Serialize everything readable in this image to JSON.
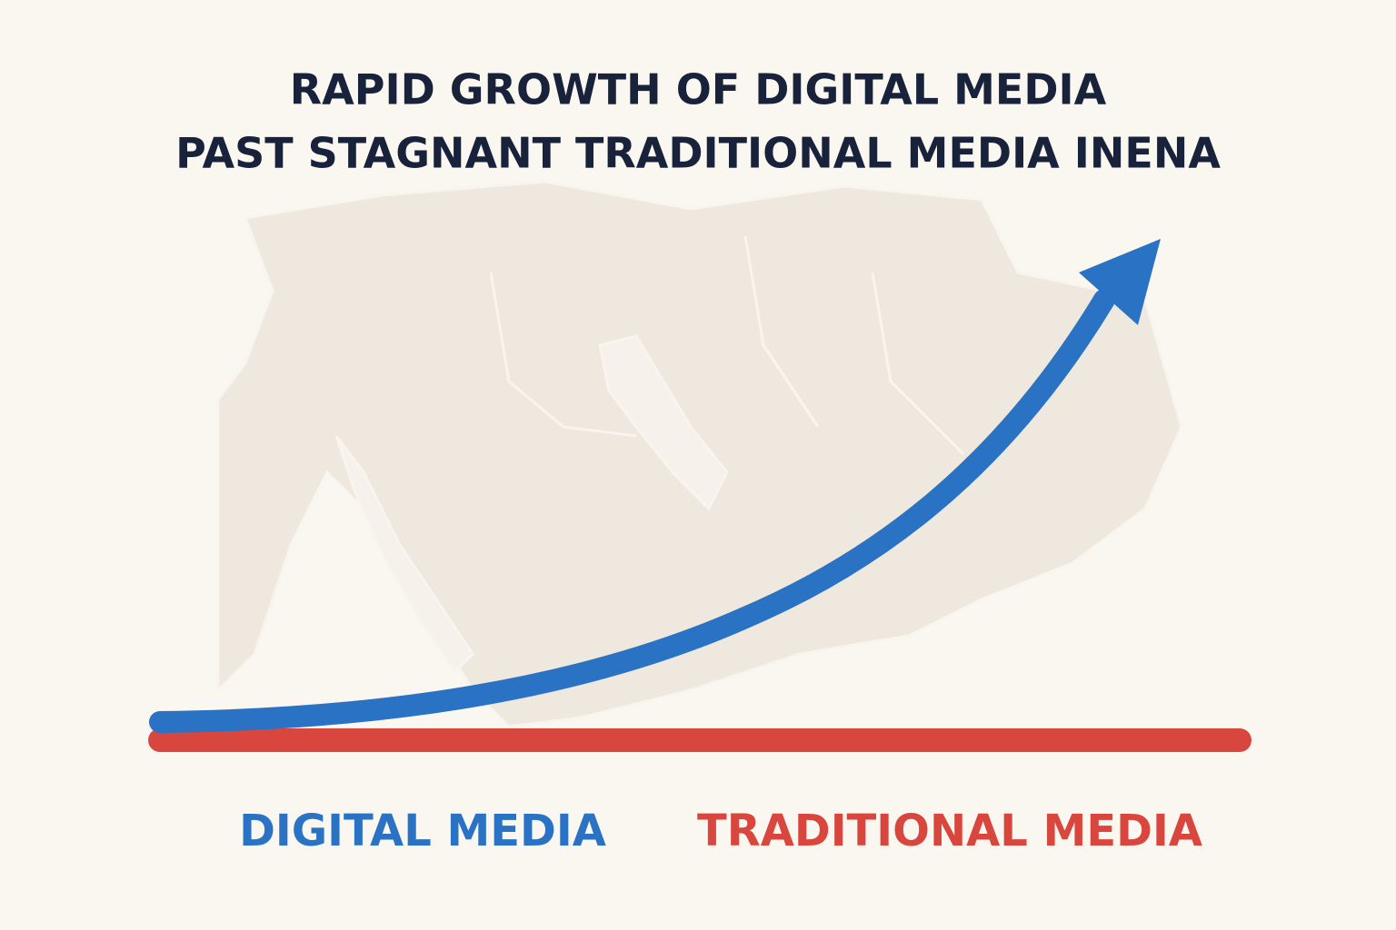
{
  "chart_data": {
    "type": "line",
    "title": [
      "RAPID GROWTH OF DIGITAL MEDIA",
      "PAST STAGNANT TRADITIONAL MEDIA INENA"
    ],
    "series": [
      {
        "name": "DIGITAL MEDIA",
        "color": "#2a72c4"
      },
      {
        "name": "TRADITIONAL MEDIA",
        "color": "#d9463e"
      }
    ]
  }
}
